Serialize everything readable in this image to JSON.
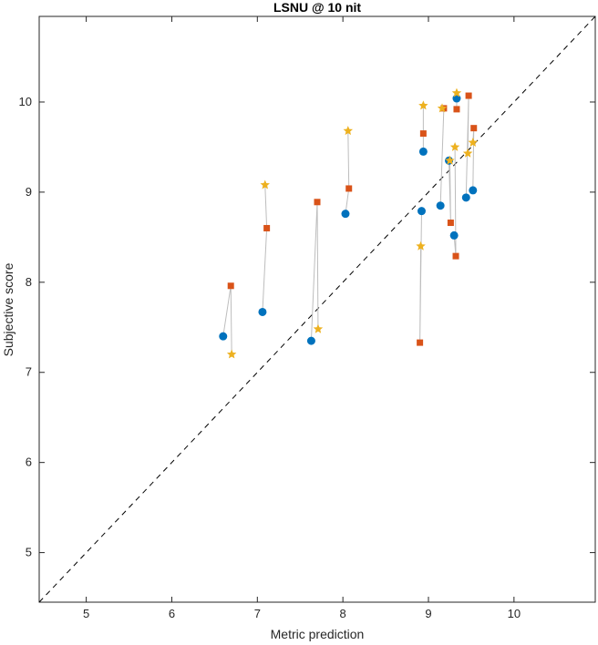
{
  "chart_data": {
    "type": "scatter",
    "title": "LSNU @ 10 nit",
    "xlabel": "Metric prediction",
    "ylabel": "Subjective score",
    "xlim": [
      4.45,
      10.95
    ],
    "ylim": [
      4.45,
      10.95
    ],
    "xticks": [
      5,
      6,
      7,
      8,
      9,
      10
    ],
    "yticks": [
      5,
      6,
      7,
      8,
      9,
      10
    ],
    "grid": false,
    "legend": "none",
    "reference_line": "y = x (dashed)",
    "colors": {
      "circle": "#0072bd",
      "square": "#d95319",
      "star": "#edb120",
      "connector": "#bdbdbd",
      "reference": "#000000"
    },
    "groups": [
      {
        "circle": [
          6.6,
          7.4
        ],
        "square": [
          6.69,
          7.96
        ],
        "star": [
          6.7,
          7.2
        ]
      },
      {
        "circle": [
          7.06,
          7.67
        ],
        "square": [
          7.11,
          8.6
        ],
        "star": [
          7.09,
          9.08
        ]
      },
      {
        "circle": [
          7.63,
          7.35
        ],
        "square": [
          7.7,
          8.89
        ],
        "star": [
          7.71,
          7.48
        ]
      },
      {
        "circle": [
          8.03,
          8.76
        ],
        "square": [
          8.07,
          9.04
        ],
        "star": [
          8.06,
          9.68
        ]
      },
      {
        "circle": [
          8.92,
          8.79
        ],
        "square": [
          8.9,
          7.33
        ],
        "star": [
          8.91,
          8.4
        ]
      },
      {
        "circle": [
          8.94,
          9.45
        ],
        "square": [
          8.94,
          9.65
        ],
        "star": [
          8.94,
          9.96
        ]
      },
      {
        "circle": [
          9.14,
          8.85
        ],
        "square": [
          9.18,
          9.93
        ],
        "star": [
          9.16,
          9.93
        ]
      },
      {
        "circle": [
          9.24,
          9.35
        ],
        "square": [
          9.26,
          8.66
        ],
        "star": [
          9.25,
          9.35
        ]
      },
      {
        "circle": [
          9.3,
          8.52
        ],
        "square": [
          9.32,
          8.29
        ],
        "star": [
          9.31,
          9.5
        ]
      },
      {
        "circle": [
          9.33,
          10.04
        ],
        "square": [
          9.33,
          9.92
        ],
        "star": [
          9.33,
          10.1
        ]
      },
      {
        "circle": [
          9.44,
          8.94
        ],
        "square": [
          9.47,
          10.07
        ],
        "star": [
          9.46,
          9.43
        ]
      },
      {
        "circle": [
          9.52,
          9.02
        ],
        "square": [
          9.53,
          9.71
        ],
        "star": [
          9.52,
          9.55
        ]
      }
    ]
  }
}
